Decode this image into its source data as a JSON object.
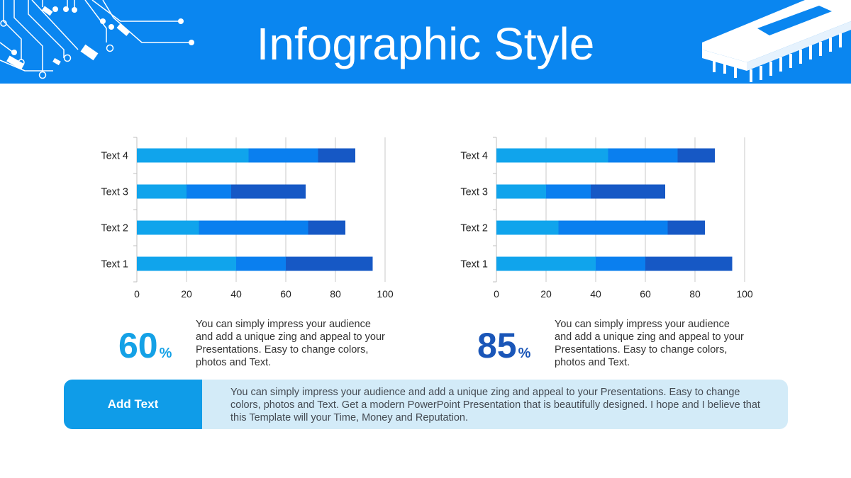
{
  "header": {
    "title": "Infographic Style"
  },
  "colors": {
    "header_bg": "#0a86f0",
    "series1": "#10a4ec",
    "series2": "#0a7fef",
    "series3": "#1658c5",
    "stat_left": "#14a1e6",
    "stat_right": "#1a56b8",
    "banner_label_bg": "#0f9ce8",
    "banner_bg": "#d3ebf8"
  },
  "chart_data": [
    {
      "type": "bar",
      "orientation": "horizontal",
      "stacked": true,
      "categories": [
        "Text 1",
        "Text 2",
        "Text 3",
        "Text 4"
      ],
      "series": [
        {
          "values": [
            40,
            25,
            20,
            45
          ]
        },
        {
          "values": [
            20,
            44,
            18,
            28
          ]
        },
        {
          "values": [
            35,
            15,
            30,
            15
          ]
        }
      ],
      "xlim": [
        0,
        100
      ],
      "xticks": [
        0,
        20,
        40,
        60,
        80,
        100
      ],
      "grid": true,
      "legend": "none"
    },
    {
      "type": "bar",
      "orientation": "horizontal",
      "stacked": true,
      "categories": [
        "Text 1",
        "Text 2",
        "Text 3",
        "Text 4"
      ],
      "series": [
        {
          "values": [
            40,
            25,
            20,
            45
          ]
        },
        {
          "values": [
            20,
            44,
            18,
            28
          ]
        },
        {
          "values": [
            35,
            15,
            30,
            15
          ]
        }
      ],
      "xlim": [
        0,
        100
      ],
      "xticks": [
        0,
        20,
        40,
        60,
        80,
        100
      ],
      "grid": true,
      "legend": "none"
    }
  ],
  "stats": [
    {
      "number": "60",
      "suffix": "%",
      "text": "You can simply impress your audience and add a unique zing and appeal to your Presentations. Easy to change colors, photos and Text."
    },
    {
      "number": "85",
      "suffix": "%",
      "text": "You can simply impress your audience and add a unique zing and appeal to your Presentations. Easy to change colors, photos and Text."
    }
  ],
  "banner": {
    "label": "Add Text",
    "text": "You can simply impress your audience and add a unique zing and appeal to your Presentations. Easy to change colors, photos and Text. Get a modern PowerPoint  Presentation that is beautifully designed. I hope and I believe that this Template will your Time, Money and Reputation."
  }
}
